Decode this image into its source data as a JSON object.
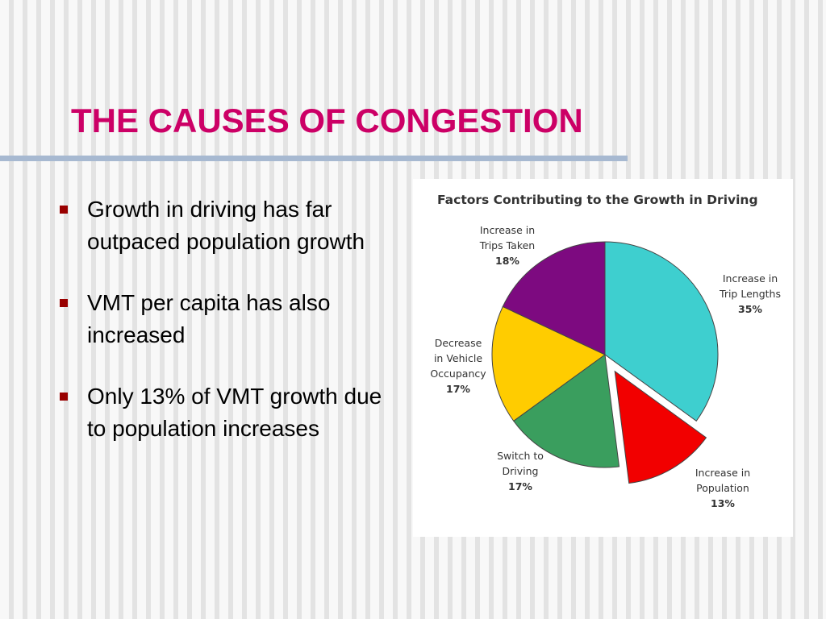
{
  "slide": {
    "title": "THE CAUSES OF CONGESTION",
    "bullets": [
      "Growth in driving has far outpaced population growth",
      "VMT per capita has also increased",
      "Only 13% of VMT growth due to population increases"
    ]
  },
  "colors": {
    "title": "#cc0066",
    "bullet_marker": "#990000",
    "rule": "#a7b9d1"
  },
  "chart_data": {
    "type": "pie",
    "title": "Factors Contributing to the Growth in Driving",
    "slices": [
      {
        "label": [
          "Increase in",
          "Trip Lengths"
        ],
        "pct_label": "35%",
        "value": 35,
        "color": "#3ecfcf",
        "exploded": false
      },
      {
        "label": [
          "Increase in",
          "Population"
        ],
        "pct_label": "13%",
        "value": 13,
        "color": "#f20000",
        "exploded": true
      },
      {
        "label": [
          "Switch to",
          "Driving"
        ],
        "pct_label": "17%",
        "value": 17,
        "color": "#3a9e5e",
        "exploded": false
      },
      {
        "label": [
          "Decrease",
          "in Vehicle",
          "Occupancy"
        ],
        "pct_label": "17%",
        "value": 17,
        "color": "#ffcc00",
        "exploded": false
      },
      {
        "label": [
          "Increase in",
          "Trips Taken"
        ],
        "pct_label": "18%",
        "value": 18,
        "color": "#7d0a80",
        "exploded": false
      }
    ],
    "start": "12 o'clock",
    "direction": "clockwise"
  }
}
